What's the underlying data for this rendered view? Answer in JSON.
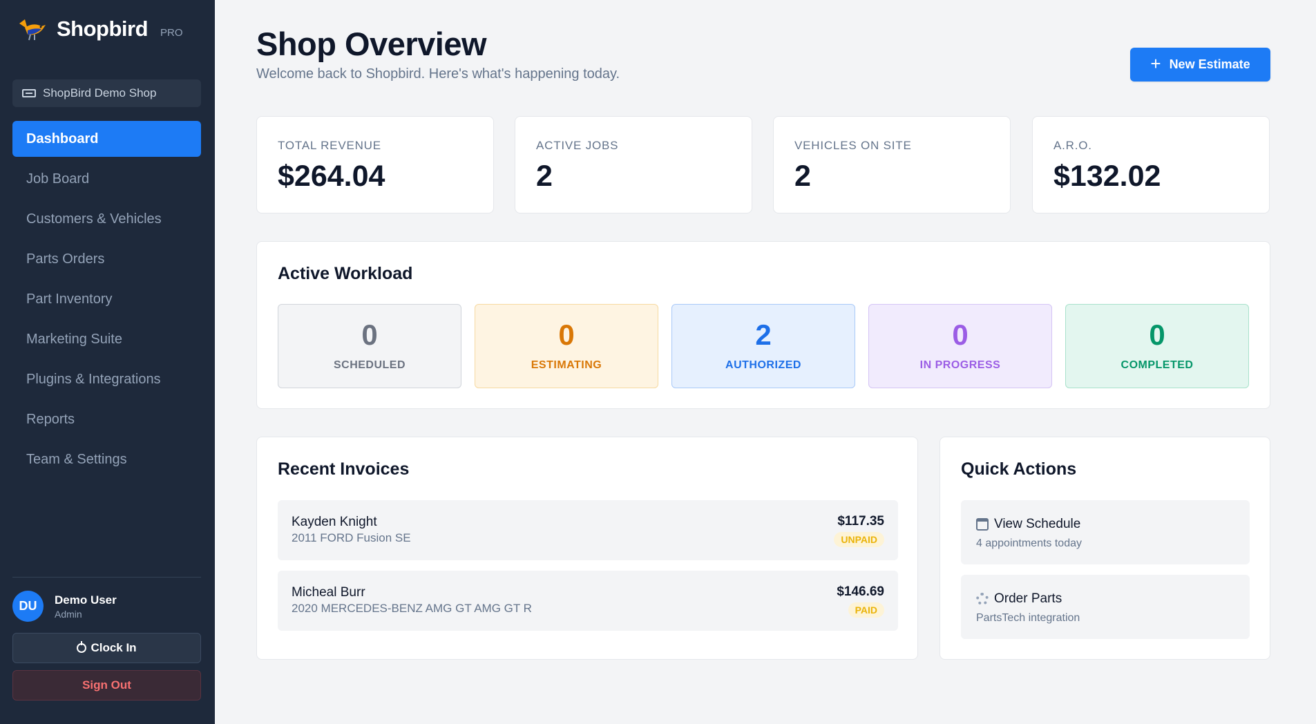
{
  "sidebar": {
    "brand": {
      "name": "Shopbird",
      "tier": "PRO"
    },
    "shop": "ShopBird Demo Shop",
    "items": [
      {
        "label": "Dashboard",
        "active": true
      },
      {
        "label": "Job Board"
      },
      {
        "label": "Customers & Vehicles"
      },
      {
        "label": "Parts Orders"
      },
      {
        "label": "Part Inventory"
      },
      {
        "label": "Marketing Suite"
      },
      {
        "label": "Plugins & Integrations"
      },
      {
        "label": "Reports"
      },
      {
        "label": "Team & Settings"
      }
    ],
    "user": {
      "initials": "DU",
      "name": "Demo User",
      "role": "Admin"
    },
    "clock_in": "Clock In",
    "sign_out": "Sign Out"
  },
  "header": {
    "title": "Shop Overview",
    "subtitle": "Welcome back to Shopbird. Here's what's happening today.",
    "new_estimate": "New Estimate"
  },
  "stats": [
    {
      "label": "TOTAL REVENUE",
      "value": "$264.04"
    },
    {
      "label": "ACTIVE JOBS",
      "value": "2"
    },
    {
      "label": "VEHICLES ON SITE",
      "value": "2"
    },
    {
      "label": "A.R.O.",
      "value": "$132.02"
    }
  ],
  "workload": {
    "title": "Active Workload",
    "items": [
      {
        "count": "0",
        "label": "SCHEDULED",
        "color": "#6b7280"
      },
      {
        "count": "0",
        "label": "ESTIMATING",
        "color": "#d97706"
      },
      {
        "count": "2",
        "label": "AUTHORIZED",
        "color": "#1d6fe8"
      },
      {
        "count": "0",
        "label": "IN PROGRESS",
        "color": "#9b5de5"
      },
      {
        "count": "0",
        "label": "COMPLETED",
        "color": "#059669"
      }
    ]
  },
  "invoices": {
    "title": "Recent Invoices",
    "items": [
      {
        "name": "Kayden Knight",
        "vehicle": "2011 FORD Fusion SE",
        "amount": "$117.35",
        "status": "UNPAID"
      },
      {
        "name": "Micheal Burr",
        "vehicle": "2020 MERCEDES-BENZ AMG GT AMG GT R",
        "amount": "$146.69",
        "status": "PAID"
      }
    ]
  },
  "quick_actions": {
    "title": "Quick Actions",
    "items": [
      {
        "title": "View Schedule",
        "subtitle": "4 appointments today",
        "icon": "calendar-icon"
      },
      {
        "title": "Order Parts",
        "subtitle": "PartsTech integration",
        "icon": "gear-icon"
      }
    ]
  }
}
